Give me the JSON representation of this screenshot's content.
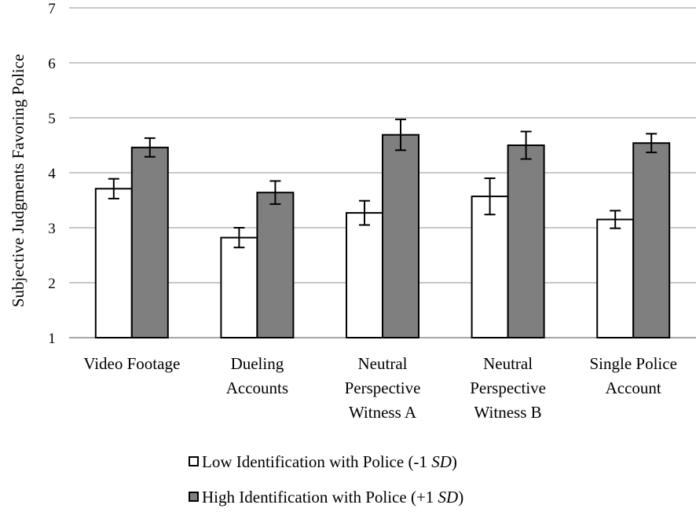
{
  "chart_data": {
    "type": "bar",
    "ylabel": "Subjective Judgments Favoring Police",
    "xlabel": "",
    "ylim": [
      1,
      7
    ],
    "yticks": [
      1,
      2,
      3,
      4,
      5,
      6,
      7
    ],
    "grid": true,
    "legend_position": "bottom",
    "categories": [
      [
        "Video Footage"
      ],
      [
        "Dueling",
        "Accounts"
      ],
      [
        "Neutral",
        "Perspective",
        "Witness A"
      ],
      [
        "Neutral",
        "Perspective",
        "Witness B"
      ],
      [
        "Single Police",
        "Account"
      ]
    ],
    "series": [
      {
        "name": "Low Identification with Police (-1 SD)",
        "legend_prefix": "Low Identification with Police (-1 ",
        "legend_sd": "SD",
        "legend_suffix": ")",
        "color": "#ffffff",
        "values": [
          3.71,
          2.82,
          3.27,
          3.57,
          3.15
        ],
        "error": [
          0.18,
          0.18,
          0.22,
          0.33,
          0.16
        ]
      },
      {
        "name": "High Identification with Police (+1 SD)",
        "legend_prefix": "High Identification with Police (+1 ",
        "legend_sd": "SD",
        "legend_suffix": ")",
        "color": "#7f7f7f",
        "values": [
          4.46,
          3.64,
          4.69,
          4.5,
          4.54
        ],
        "error": [
          0.17,
          0.21,
          0.28,
          0.25,
          0.17
        ]
      }
    ]
  }
}
